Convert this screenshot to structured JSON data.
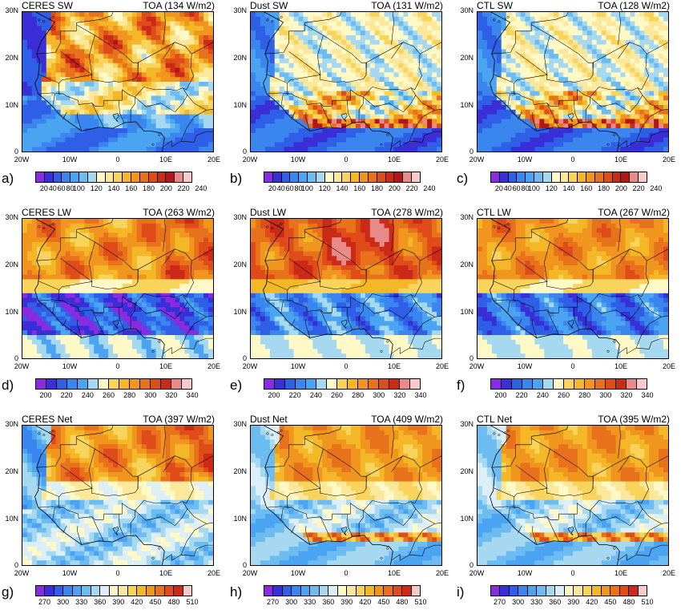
{
  "chart_data": [
    {
      "type": "heatmap",
      "id": "a",
      "panel_label": "a)",
      "title": "CERES SW",
      "subtitle": "TOA (134 W/m2)",
      "field": "sw",
      "pattern": "ceres_sw",
      "x_ticks": [
        "20W",
        "10W",
        "0",
        "10E",
        "20E"
      ],
      "y_ticks": [
        "0",
        "10N",
        "20N",
        "30N"
      ],
      "colorbar_labels": [
        "20",
        "40",
        "60",
        "80",
        "100",
        "120",
        "140",
        "160",
        "180",
        "200",
        "220",
        "240"
      ],
      "levels": [
        20,
        40,
        60,
        80,
        100,
        110,
        120,
        130,
        140,
        150,
        160,
        170,
        180,
        190,
        200,
        210,
        220,
        230,
        240
      ],
      "mean": 134
    },
    {
      "type": "heatmap",
      "id": "b",
      "panel_label": "b)",
      "title": "Dust SW",
      "subtitle": "TOA (131 W/m2)",
      "field": "sw",
      "pattern": "model_sw",
      "x_ticks": [
        "20W",
        "10W",
        "0",
        "10E",
        "20E"
      ],
      "y_ticks": [
        "0",
        "10N",
        "20N",
        "30N"
      ],
      "colorbar_labels": [
        "20",
        "40",
        "60",
        "80",
        "100",
        "120",
        "140",
        "160",
        "180",
        "200",
        "220",
        "240"
      ],
      "levels": [
        20,
        40,
        60,
        80,
        100,
        110,
        120,
        130,
        140,
        150,
        160,
        170,
        180,
        190,
        200,
        210,
        220,
        230,
        240
      ],
      "mean": 131
    },
    {
      "type": "heatmap",
      "id": "c",
      "panel_label": "c)",
      "title": "CTL SW",
      "subtitle": "TOA (128 W/m2)",
      "field": "sw",
      "pattern": "model_sw",
      "x_ticks": [
        "20W",
        "10W",
        "0",
        "10E",
        "20E"
      ],
      "y_ticks": [
        "0",
        "10N",
        "20N",
        "30N"
      ],
      "colorbar_labels": [
        "20",
        "40",
        "60",
        "80",
        "100",
        "120",
        "140",
        "160",
        "180",
        "200",
        "220",
        "240"
      ],
      "levels": [
        20,
        40,
        60,
        80,
        100,
        110,
        120,
        130,
        140,
        150,
        160,
        170,
        180,
        190,
        200,
        210,
        220,
        230,
        240
      ],
      "mean": 128
    },
    {
      "type": "heatmap",
      "id": "d",
      "panel_label": "d)",
      "title": "CERES LW",
      "subtitle": "TOA (263 W/m2)",
      "field": "lw",
      "pattern": "ceres_lw",
      "x_ticks": [
        "20W",
        "10W",
        "0",
        "10E",
        "20E"
      ],
      "y_ticks": [
        "0",
        "10N",
        "20N",
        "30N"
      ],
      "colorbar_labels": [
        "200",
        "220",
        "240",
        "260",
        "280",
        "300",
        "320",
        "340"
      ],
      "levels": [
        200,
        210,
        220,
        230,
        240,
        250,
        260,
        270,
        280,
        290,
        300,
        310,
        320,
        330,
        340
      ],
      "mean": 263
    },
    {
      "type": "heatmap",
      "id": "e",
      "panel_label": "e)",
      "title": "Dust LW",
      "subtitle": "TOA (278 W/m2)",
      "field": "lw",
      "pattern": "dust_lw",
      "x_ticks": [
        "20W",
        "10W",
        "0",
        "10E",
        "20E"
      ],
      "y_ticks": [
        "0",
        "10N",
        "20N",
        "30N"
      ],
      "colorbar_labels": [
        "200",
        "220",
        "240",
        "260",
        "280",
        "300",
        "320",
        "340"
      ],
      "levels": [
        200,
        210,
        220,
        230,
        240,
        250,
        260,
        270,
        280,
        290,
        300,
        310,
        320,
        330,
        340
      ],
      "mean": 278
    },
    {
      "type": "heatmap",
      "id": "f",
      "panel_label": "f)",
      "title": "CTL LW",
      "subtitle": "TOA (267 W/m2)",
      "field": "lw",
      "pattern": "ctl_lw",
      "x_ticks": [
        "20W",
        "10W",
        "0",
        "10E",
        "20E"
      ],
      "y_ticks": [
        "0",
        "10N",
        "20N",
        "30N"
      ],
      "colorbar_labels": [
        "200",
        "220",
        "240",
        "260",
        "280",
        "300",
        "320",
        "340"
      ],
      "levels": [
        200,
        210,
        220,
        230,
        240,
        250,
        260,
        270,
        280,
        290,
        300,
        310,
        320,
        330,
        340
      ],
      "mean": 267
    },
    {
      "type": "heatmap",
      "id": "g",
      "panel_label": "g)",
      "title": "CERES Net",
      "subtitle": "TOA (397 W/m2)",
      "field": "net",
      "pattern": "ceres_net",
      "x_ticks": [
        "20W",
        "10W",
        "0",
        "10E",
        "20E"
      ],
      "y_ticks": [
        "0",
        "10N",
        "20N",
        "30N"
      ],
      "colorbar_labels": [
        "270",
        "300",
        "330",
        "360",
        "390",
        "420",
        "450",
        "480",
        "510"
      ],
      "levels": [
        270,
        285,
        300,
        315,
        330,
        345,
        360,
        375,
        390,
        405,
        420,
        435,
        450,
        465,
        480,
        495,
        510
      ],
      "mean": 397
    },
    {
      "type": "heatmap",
      "id": "h",
      "panel_label": "h)",
      "title": "Dust Net",
      "subtitle": "TOA (409 W/m2)",
      "field": "net",
      "pattern": "model_net",
      "x_ticks": [
        "20W",
        "10W",
        "0",
        "10E",
        "20E"
      ],
      "y_ticks": [
        "0",
        "10N",
        "20N",
        "30N"
      ],
      "colorbar_labels": [
        "270",
        "300",
        "330",
        "360",
        "390",
        "420",
        "450",
        "480",
        "510"
      ],
      "levels": [
        270,
        285,
        300,
        315,
        330,
        345,
        360,
        375,
        390,
        405,
        420,
        435,
        450,
        465,
        480,
        495,
        510
      ],
      "mean": 409
    },
    {
      "type": "heatmap",
      "id": "i",
      "panel_label": "i)",
      "title": "CTL Net",
      "subtitle": "TOA (395 W/m2)",
      "field": "net",
      "pattern": "model_net",
      "x_ticks": [
        "20W",
        "10W",
        "0",
        "10E",
        "20E"
      ],
      "y_ticks": [
        "0",
        "10N",
        "20N",
        "30N"
      ],
      "colorbar_labels": [
        "270",
        "300",
        "330",
        "360",
        "390",
        "420",
        "450",
        "480",
        "510"
      ],
      "levels": [
        270,
        285,
        300,
        315,
        330,
        345,
        360,
        375,
        390,
        405,
        420,
        435,
        450,
        465,
        480,
        495,
        510
      ],
      "mean": 395
    }
  ],
  "colormaps": {
    "sw": [
      "#8a2be2",
      "#3a2fd6",
      "#2e5fe6",
      "#3a86ee",
      "#4aa4f2",
      "#6cbcf2",
      "#a6d8f0",
      "#fff9c8",
      "#fbe89a",
      "#f8d45c",
      "#f4b728",
      "#f0961e",
      "#e8721c",
      "#e04b1a",
      "#cc2a18",
      "#b21616",
      "#e88a8a",
      "#f9caca"
    ],
    "lw": [
      "#8a2be2",
      "#3a2fd6",
      "#2e5fe6",
      "#3a86ee",
      "#4aa4f2",
      "#a6d8f0",
      "#fff9c8",
      "#f8d45c",
      "#f4b728",
      "#f0961e",
      "#e8721c",
      "#e04b1a",
      "#cc2a18",
      "#e88a8a",
      "#f9caca"
    ],
    "net": [
      "#8a2be2",
      "#3a2fd6",
      "#2e5fe6",
      "#3a86ee",
      "#4aa4f2",
      "#6cbcf2",
      "#a6d8f0",
      "#dceef6",
      "#fff9c8",
      "#fbe89a",
      "#f8d45c",
      "#f4b728",
      "#f0961e",
      "#e8721c",
      "#e04b1a",
      "#cc2a18",
      "#f9caca"
    ]
  }
}
